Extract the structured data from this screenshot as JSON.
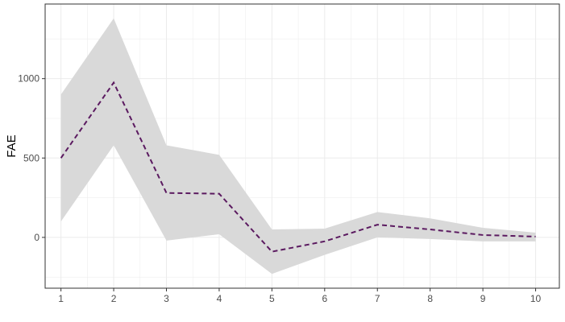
{
  "chart_data": {
    "type": "line",
    "title": "",
    "xlabel": "",
    "ylabel": "FAE",
    "x": [
      1,
      2,
      3,
      4,
      5,
      6,
      7,
      8,
      9,
      10
    ],
    "series": [
      {
        "values": [
          500,
          975,
          280,
          275,
          -90,
          -25,
          80,
          50,
          15,
          5
        ],
        "lower": [
          100,
          580,
          -20,
          20,
          -230,
          -110,
          0,
          -10,
          -25,
          -25
        ],
        "upper": [
          900,
          1380,
          580,
          520,
          50,
          55,
          160,
          120,
          60,
          30
        ],
        "line_color": "#5b1a60",
        "line_style": "dashed",
        "ribbon_color": "#d9d9d9"
      }
    ],
    "xlim": [
      0.7,
      10.45
    ],
    "ylim": [
      -320,
      1470
    ],
    "x_ticks": [
      1,
      2,
      3,
      4,
      5,
      6,
      7,
      8,
      9,
      10
    ],
    "y_ticks": [
      0,
      500,
      1000
    ],
    "x_tick_labels": [
      "1",
      "2",
      "3",
      "4",
      "5",
      "6",
      "7",
      "8",
      "9",
      "10"
    ],
    "y_tick_labels": [
      "0",
      "500",
      "1000"
    ],
    "grid": true,
    "panel_background": "#ffffff",
    "grid_color": "#ebebeb",
    "legend": "none"
  }
}
